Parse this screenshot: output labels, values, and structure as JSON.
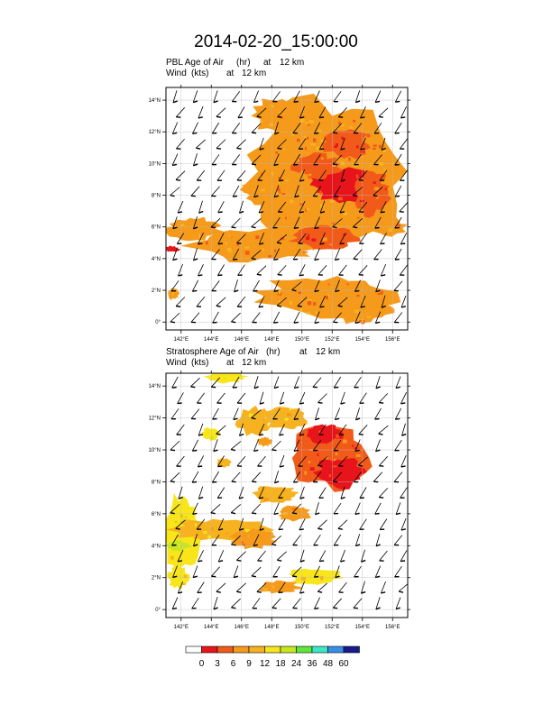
{
  "title": "2014-02-20_15:00:00",
  "colors": {
    "levels": [
      "#ffffff",
      "#e8141c",
      "#f25a19",
      "#f59a1a",
      "#f7b21f",
      "#f9e61a",
      "#c8e81e",
      "#5ee63a",
      "#3ce6c8",
      "#3a8ee6",
      "#1a1a8c"
    ],
    "wind": "#000000",
    "axis": "#000000",
    "grid": "#bbbbbb"
  },
  "chart_data": [
    {
      "type": "heatmap",
      "variable": "PBL Age of Air",
      "header_line1": {
        "name": "PBL Age of Air",
        "units": "(hr)",
        "at": "at",
        "level": "12 km"
      },
      "header_line2": {
        "name": "Wind",
        "units": "(kts)",
        "at": "at",
        "level": "12 km"
      },
      "xlim": [
        141,
        157
      ],
      "ylim": [
        -0.5,
        14.8
      ],
      "xticks": [
        "142°E",
        "144°E",
        "146°E",
        "148°E",
        "150°E",
        "152°E",
        "154°E",
        "156°E"
      ],
      "yticks": [
        "0°",
        "2°N",
        "4°N",
        "6°N",
        "8°N",
        "10°N",
        "12°N",
        "14°N"
      ],
      "blobs": [
        {
          "lon": 151.5,
          "lat": 9.5,
          "rlon": 5.5,
          "rlat": 4.6,
          "level": 3
        },
        {
          "lon": 148.5,
          "lat": 13.0,
          "rlon": 1.8,
          "rlat": 1.2,
          "level": 3
        },
        {
          "lon": 152.8,
          "lat": 8.7,
          "rlon": 2.5,
          "rlat": 1.1,
          "level": 1
        },
        {
          "lon": 151.0,
          "lat": 9.8,
          "rlon": 1.6,
          "rlat": 0.8,
          "level": 2
        },
        {
          "lon": 154.6,
          "lat": 8.2,
          "rlon": 1.2,
          "rlat": 1.5,
          "level": 2
        },
        {
          "lon": 153.0,
          "lat": 11.2,
          "rlon": 1.6,
          "rlat": 0.9,
          "level": 2
        },
        {
          "lon": 148.5,
          "lat": 8.2,
          "rlon": 2.6,
          "rlat": 0.9,
          "level": 3
        },
        {
          "lon": 147.0,
          "lat": 4.8,
          "rlon": 4.6,
          "rlat": 1.0,
          "level": 3
        },
        {
          "lon": 142.8,
          "lat": 5.9,
          "rlon": 1.9,
          "rlat": 0.7,
          "level": 3
        },
        {
          "lon": 151.5,
          "lat": 5.3,
          "rlon": 2.2,
          "rlat": 0.8,
          "level": 2
        },
        {
          "lon": 155.8,
          "lat": 6.0,
          "rlon": 1.1,
          "rlat": 0.6,
          "level": 3
        },
        {
          "lon": 151.8,
          "lat": 1.6,
          "rlon": 4.8,
          "rlat": 1.4,
          "level": 3
        },
        {
          "lon": 153.8,
          "lat": 0.8,
          "rlon": 2.3,
          "rlat": 0.9,
          "level": 3
        },
        {
          "lon": 141.4,
          "lat": 4.6,
          "rlon": 0.5,
          "rlat": 0.2,
          "level": 1
        },
        {
          "lon": 141.5,
          "lat": 1.8,
          "rlon": 0.4,
          "rlat": 0.4,
          "level": 3
        }
      ],
      "wind_u": -6,
      "wind_v": -9
    },
    {
      "type": "heatmap",
      "variable": "Stratosphere Age of Air",
      "header_line1": {
        "name": "Stratosphere Age of Air",
        "units": "(hr)",
        "at": "at",
        "level": "12 km"
      },
      "header_line2": {
        "name": "Wind",
        "units": "(kts)",
        "at": "at",
        "level": "12 km"
      },
      "xlim": [
        141,
        157
      ],
      "ylim": [
        -0.5,
        14.8
      ],
      "xticks": [
        "142°E",
        "144°E",
        "146°E",
        "148°E",
        "150°E",
        "152°E",
        "154°E",
        "156°E"
      ],
      "yticks": [
        "0°",
        "2°N",
        "4°N",
        "6°N",
        "8°N",
        "10°N",
        "12°N",
        "14°N"
      ],
      "blobs": [
        {
          "lon": 142.0,
          "lat": 4.6,
          "rlon": 1.2,
          "rlat": 2.6,
          "level": 5
        },
        {
          "lon": 144.5,
          "lat": 5.0,
          "rlon": 3.4,
          "rlat": 0.7,
          "level": 4
        },
        {
          "lon": 141.8,
          "lat": 4.0,
          "rlon": 0.9,
          "rlat": 0.3,
          "level": 6
        },
        {
          "lon": 145.0,
          "lat": 14.6,
          "rlon": 1.4,
          "rlat": 0.4,
          "level": 5
        },
        {
          "lon": 144.0,
          "lat": 11.0,
          "rlon": 0.6,
          "rlat": 0.4,
          "level": 5
        },
        {
          "lon": 146.8,
          "lat": 11.8,
          "rlon": 1.2,
          "rlat": 0.9,
          "level": 4
        },
        {
          "lon": 149.0,
          "lat": 12.0,
          "rlon": 1.5,
          "rlat": 0.8,
          "level": 4
        },
        {
          "lon": 151.8,
          "lat": 9.5,
          "rlon": 2.6,
          "rlat": 2.0,
          "level": 2
        },
        {
          "lon": 152.5,
          "lat": 8.6,
          "rlon": 1.6,
          "rlat": 1.0,
          "level": 1
        },
        {
          "lon": 151.5,
          "lat": 11.0,
          "rlon": 1.2,
          "rlat": 0.6,
          "level": 1
        },
        {
          "lon": 148.2,
          "lat": 7.2,
          "rlon": 1.6,
          "rlat": 0.6,
          "level": 4
        },
        {
          "lon": 146.8,
          "lat": 4.4,
          "rlon": 1.5,
          "rlat": 0.6,
          "level": 3
        },
        {
          "lon": 149.5,
          "lat": 6.0,
          "rlon": 1.1,
          "rlat": 0.5,
          "level": 3
        },
        {
          "lon": 150.8,
          "lat": 2.1,
          "rlon": 1.8,
          "rlat": 0.5,
          "level": 5
        },
        {
          "lon": 148.5,
          "lat": 1.4,
          "rlon": 1.4,
          "rlat": 0.4,
          "level": 3
        },
        {
          "lon": 141.8,
          "lat": 2.0,
          "rlon": 0.7,
          "rlat": 0.7,
          "level": 5
        },
        {
          "lon": 144.8,
          "lat": 9.2,
          "rlon": 0.5,
          "rlat": 0.3,
          "level": 4
        },
        {
          "lon": 147.5,
          "lat": 10.5,
          "rlon": 0.5,
          "rlat": 0.3,
          "level": 3
        }
      ],
      "wind_u": -6,
      "wind_v": -9
    }
  ],
  "colorbar": {
    "labels": [
      "0",
      "3",
      "6",
      "9",
      "12",
      "18",
      "24",
      "36",
      "48",
      "60"
    ]
  }
}
